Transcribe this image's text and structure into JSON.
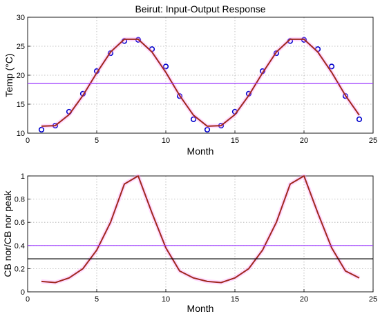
{
  "chart_data": [
    {
      "type": "line",
      "title": "Beirut: Input-Output Response",
      "xlabel": "Month",
      "ylabel": "Temp (°C)",
      "xlim": [
        0,
        25
      ],
      "ylim": [
        10,
        30
      ],
      "xticks": [
        0,
        5,
        10,
        15,
        20,
        25
      ],
      "yticks": [
        10,
        15,
        20,
        25,
        30
      ],
      "grid": true,
      "series": [
        {
          "kind": "scatter",
          "color": "#0000cc",
          "x": [
            1,
            2,
            3,
            4,
            5,
            6,
            7,
            8,
            9,
            10,
            11,
            12,
            13,
            14,
            15,
            16,
            17,
            18,
            19,
            20,
            21,
            22,
            23,
            24
          ],
          "y": [
            10.6,
            11.3,
            13.7,
            16.8,
            20.7,
            23.8,
            25.9,
            26.1,
            24.5,
            21.5,
            16.4,
            12.4,
            10.6,
            11.3,
            13.7,
            16.8,
            20.7,
            23.8,
            25.9,
            26.1,
            24.5,
            21.5,
            16.4,
            12.4
          ]
        },
        {
          "kind": "line",
          "color": "#a0281e",
          "x": [
            1,
            2,
            3,
            4,
            5,
            6,
            7,
            8,
            9,
            10,
            11,
            12,
            13,
            14,
            15,
            16,
            17,
            18,
            19,
            20,
            21,
            22,
            23,
            24
          ],
          "y": [
            11.2,
            11.3,
            13.2,
            16.5,
            20.4,
            24.0,
            26.2,
            26.2,
            24.0,
            20.5,
            16.5,
            13.1,
            11.2,
            11.3,
            13.2,
            16.5,
            20.4,
            24.0,
            26.2,
            26.2,
            24.0,
            20.5,
            16.5,
            13.1
          ]
        },
        {
          "kind": "hline",
          "color": "#9933ff",
          "y": 18.6
        }
      ]
    },
    {
      "type": "line",
      "title": "",
      "xlabel": "Month",
      "ylabel": "CB nor/CB nor peak",
      "xlim": [
        0,
        25
      ],
      "ylim": [
        0,
        1
      ],
      "xticks": [
        0,
        5,
        10,
        15,
        20,
        25
      ],
      "yticks": [
        0,
        0.2,
        0.4,
        0.6,
        0.8,
        1
      ],
      "grid": true,
      "series": [
        {
          "kind": "line",
          "color": "#a0281e",
          "x": [
            1,
            2,
            3,
            4,
            5,
            6,
            7,
            8,
            9,
            10,
            11,
            12,
            13,
            14,
            15,
            16,
            17,
            18,
            19,
            20,
            21,
            22,
            23,
            24
          ],
          "y": [
            0.09,
            0.08,
            0.12,
            0.2,
            0.36,
            0.6,
            0.93,
            1.0,
            0.68,
            0.38,
            0.18,
            0.12,
            0.09,
            0.08,
            0.12,
            0.2,
            0.36,
            0.6,
            0.93,
            1.0,
            0.68,
            0.38,
            0.18,
            0.12
          ]
        },
        {
          "kind": "hline",
          "color": "#9933ff",
          "y": 0.4
        },
        {
          "kind": "hline",
          "color": "#000000",
          "y": 0.285
        }
      ]
    }
  ]
}
